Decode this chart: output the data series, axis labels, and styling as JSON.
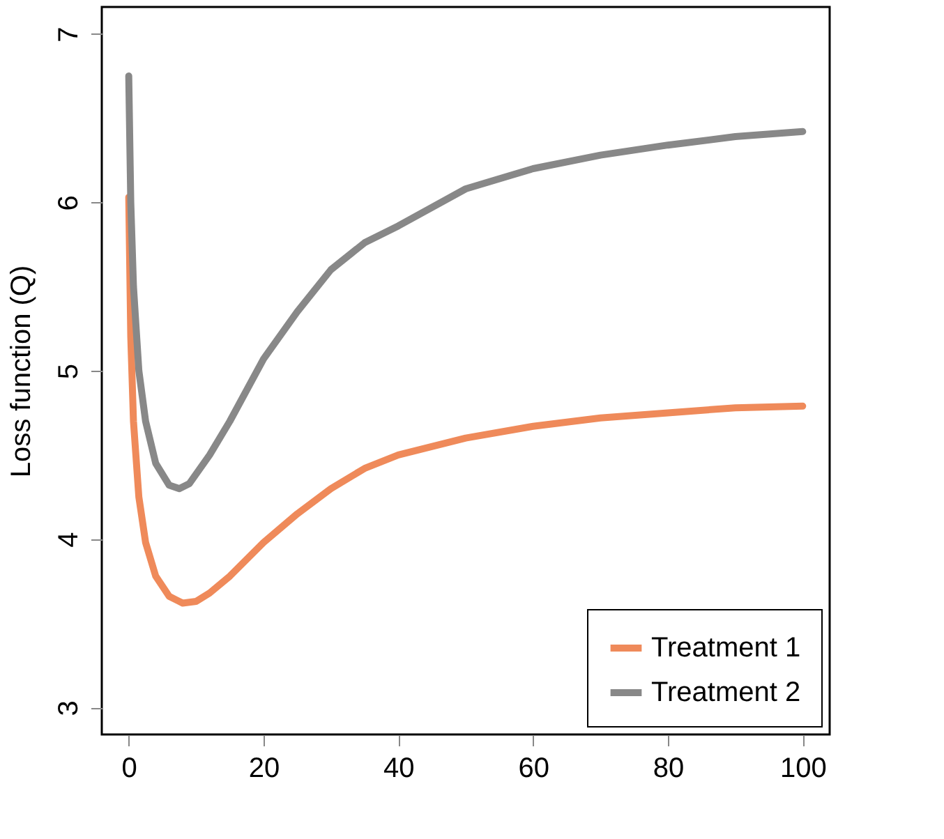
{
  "chart_data": {
    "type": "line",
    "ylabel": "Loss function (Q)",
    "xlim": [
      -4,
      104
    ],
    "ylim": [
      2.84,
      7.16
    ],
    "xticks": [
      0,
      20,
      40,
      60,
      80,
      100
    ],
    "yticks": [
      3,
      4,
      5,
      6,
      7
    ],
    "grid": false,
    "legend": "bottom right",
    "marker": "none",
    "line_style": "solid",
    "series": [
      {
        "name": "Treatment 1",
        "color": "#ef8a5a",
        "x": [
          0,
          0.3,
          0.7,
          1.5,
          2.5,
          4,
          6,
          8,
          10,
          12,
          15,
          20,
          25,
          30,
          35,
          40,
          50,
          60,
          70,
          80,
          90,
          100
        ],
        "values": [
          6.03,
          5.2,
          4.7,
          4.25,
          3.98,
          3.78,
          3.66,
          3.62,
          3.63,
          3.68,
          3.78,
          3.98,
          4.15,
          4.3,
          4.42,
          4.5,
          4.6,
          4.67,
          4.72,
          4.75,
          4.78,
          4.79
        ]
      },
      {
        "name": "Treatment 2",
        "color": "#888888",
        "x": [
          0,
          0.3,
          0.7,
          1.5,
          2.5,
          4,
          6,
          7.5,
          9,
          12,
          15,
          20,
          25,
          30,
          35,
          40,
          50,
          60,
          70,
          80,
          90,
          100
        ],
        "values": [
          6.75,
          6.0,
          5.5,
          5.0,
          4.7,
          4.45,
          4.32,
          4.3,
          4.33,
          4.5,
          4.7,
          5.07,
          5.35,
          5.6,
          5.76,
          5.86,
          6.08,
          6.2,
          6.28,
          6.34,
          6.39,
          6.42
        ]
      }
    ]
  }
}
